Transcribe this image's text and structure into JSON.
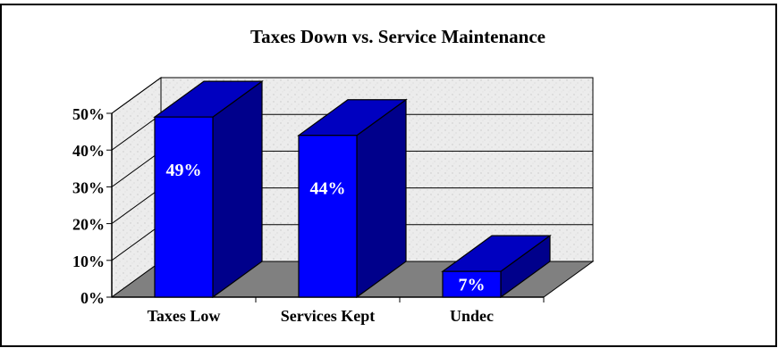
{
  "chart_data": {
    "type": "bar",
    "title": "Taxes Down vs. Service Maintenance",
    "categories": [
      "Taxes Low",
      "Services Kept",
      "Undec"
    ],
    "values": [
      49,
      44,
      7
    ],
    "data_labels": [
      "49%",
      "44%",
      "7%"
    ],
    "yticks": [
      "0%",
      "10%",
      "20%",
      "30%",
      "40%",
      "50%"
    ],
    "ylim": [
      0,
      50
    ],
    "three_d": true,
    "grid": true,
    "legend": "none",
    "colors": {
      "bar_front": "#0000FF",
      "bar_side": "#00008B",
      "bar_top": "#0000C0",
      "floor": "#808080",
      "walls": "#E8E8E8",
      "data_label": "#FFFFFF"
    }
  }
}
